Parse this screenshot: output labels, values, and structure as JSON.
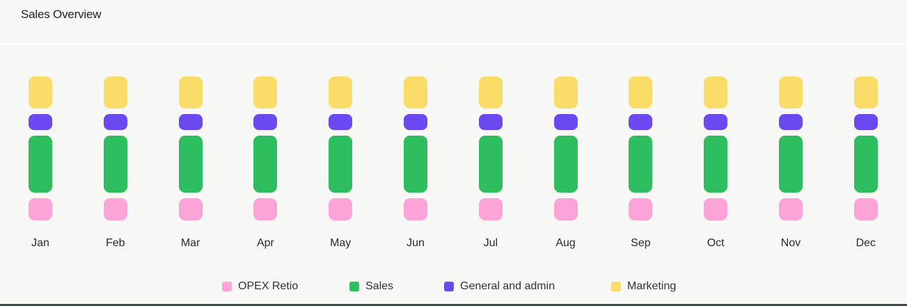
{
  "card": {
    "title": "Sales Overview"
  },
  "colors": {
    "opex": "#fca3d7",
    "sales": "#2ebd5f",
    "general": "#6c48f0",
    "marketing": "#fcdc68"
  },
  "chart_data": {
    "type": "bar",
    "stacked": true,
    "title": "Sales Overview",
    "xlabel": "",
    "ylabel": "",
    "grid": false,
    "legend_position": "bottom",
    "categories": [
      "Jan",
      "Feb",
      "Mar",
      "Apr",
      "May",
      "Jun",
      "Jul",
      "Aug",
      "Sep",
      "Oct",
      "Nov",
      "Dec"
    ],
    "series": [
      {
        "name": "OPEX Retio",
        "color": "#fca3d7",
        "values": [
          32,
          32,
          32,
          32,
          32,
          32,
          32,
          32,
          32,
          32,
          32,
          32
        ]
      },
      {
        "name": "Sales",
        "color": "#2ebd5f",
        "values": [
          82,
          82,
          82,
          82,
          82,
          82,
          82,
          82,
          82,
          82,
          82,
          82
        ]
      },
      {
        "name": "General and admin",
        "color": "#6c48f0",
        "values": [
          23,
          23,
          23,
          23,
          23,
          23,
          23,
          23,
          23,
          23,
          23,
          23
        ]
      },
      {
        "name": "Marketing",
        "color": "#fcdc68",
        "values": [
          46,
          46,
          46,
          46,
          46,
          46,
          46,
          46,
          46,
          46,
          46,
          46
        ]
      }
    ],
    "note": "Values are relative segment sizes (no axis shown); all months render identical proportions."
  },
  "legend": [
    {
      "label": "OPEX Retio",
      "color": "#fca3d7"
    },
    {
      "label": "Sales",
      "color": "#2ebd5f"
    },
    {
      "label": "General and admin",
      "color": "#6c48f0"
    },
    {
      "label": "Marketing",
      "color": "#fcdc68"
    }
  ]
}
